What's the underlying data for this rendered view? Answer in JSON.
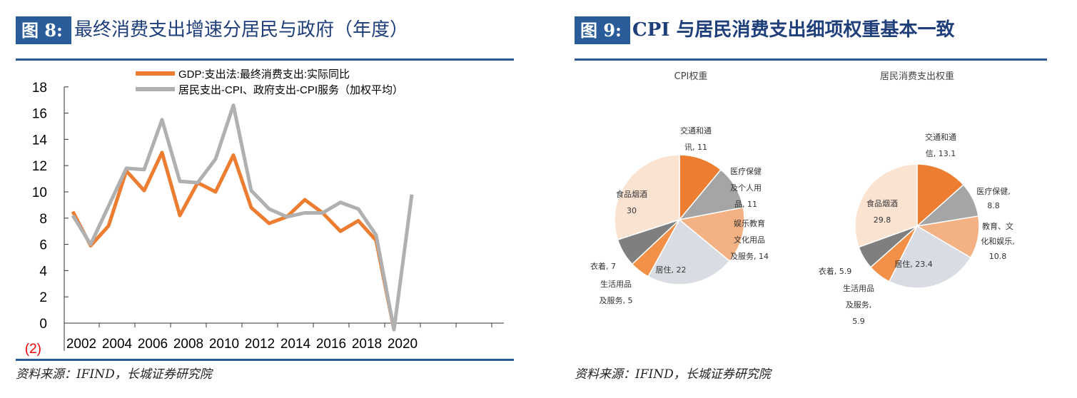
{
  "left": {
    "fig_label": "图 8:",
    "title": "最终消费支出增速分居民与政府（年度）",
    "source": "资料来源：IFIND，长城证券研究院"
  },
  "right": {
    "fig_label": "图 9:",
    "title": "CPI 与居民消费支出细项权重基本一致",
    "source": "资料来源：IFIND，长城证券研究院"
  },
  "chart_data": [
    {
      "type": "line",
      "title": "",
      "xlabel": "",
      "ylabel": "",
      "ylim": [
        -2,
        18
      ],
      "yticks": [
        "18",
        "16",
        "14",
        "12",
        "10",
        "8",
        "6",
        "4",
        "2",
        "0",
        "(2)"
      ],
      "xtick_labels": [
        "2002",
        "2004",
        "2006",
        "2008",
        "2010",
        "2012",
        "2014",
        "2016",
        "2018",
        "2020"
      ],
      "x": [
        2002,
        2003,
        2004,
        2005,
        2006,
        2007,
        2008,
        2009,
        2010,
        2011,
        2012,
        2013,
        2014,
        2015,
        2016,
        2017,
        2018,
        2019,
        2020,
        2021
      ],
      "legend_position": "top",
      "series": [
        {
          "name": "GDP:支出法:最终消费支出:实际同比",
          "color": "#ed7d31",
          "values": [
            8.5,
            5.9,
            7.4,
            11.6,
            10.1,
            13.0,
            8.2,
            10.7,
            10.0,
            12.8,
            8.8,
            7.6,
            8.1,
            9.4,
            8.4,
            7.0,
            7.8,
            6.3,
            -0.5,
            null
          ]
        },
        {
          "name": "居民支出-CPI、政府支出-CPI服务（加权平均）",
          "color": "#b0b0b0",
          "values": [
            8.2,
            6.0,
            8.9,
            11.8,
            11.7,
            15.5,
            10.8,
            10.7,
            12.5,
            16.6,
            10.1,
            8.7,
            8.1,
            8.4,
            8.4,
            9.2,
            8.7,
            6.7,
            -0.5,
            9.8
          ]
        }
      ]
    },
    {
      "type": "pie",
      "title": "CPI权重",
      "slices": [
        {
          "label": "交通和通\n讯, 11",
          "value": 11,
          "color": "#ed7d31"
        },
        {
          "label": "医疗保健\n及个人用\n品, 11",
          "value": 11,
          "color": "#a5a5a5"
        },
        {
          "label": "娱乐教育\n文化用品\n及服务, 14",
          "value": 14,
          "color": "#f4b183"
        },
        {
          "label": "居住, 22",
          "value": 22,
          "color": "#d9dde3"
        },
        {
          "label": "生活用品\n及服务, 5",
          "value": 5,
          "color": "#f29048"
        },
        {
          "label": "衣着, 7",
          "value": 7,
          "color": "#7f7f7f"
        },
        {
          "label": "食品烟酒\n30",
          "value": 30,
          "color": "#fbe3d2"
        }
      ]
    },
    {
      "type": "pie",
      "title": "居民消费支出权重",
      "slices": [
        {
          "label": "交通和通\n信, 13.1",
          "value": 13.1,
          "color": "#ed7d31"
        },
        {
          "label": "医疗保健,\n8.8",
          "value": 8.8,
          "color": "#a5a5a5"
        },
        {
          "label": "教育、文\n化和娱乐,\n10.8",
          "value": 10.8,
          "color": "#f4b183"
        },
        {
          "label": "居住, 23.4",
          "value": 23.4,
          "color": "#d9dde3"
        },
        {
          "label": "生活用品\n及服务,\n5.9",
          "value": 5.9,
          "color": "#f29048"
        },
        {
          "label": "衣着, 5.9",
          "value": 5.9,
          "color": "#7f7f7f"
        },
        {
          "label": "食品烟酒\n29.8",
          "value": 29.8,
          "color": "#fbe3d2"
        }
      ]
    }
  ]
}
